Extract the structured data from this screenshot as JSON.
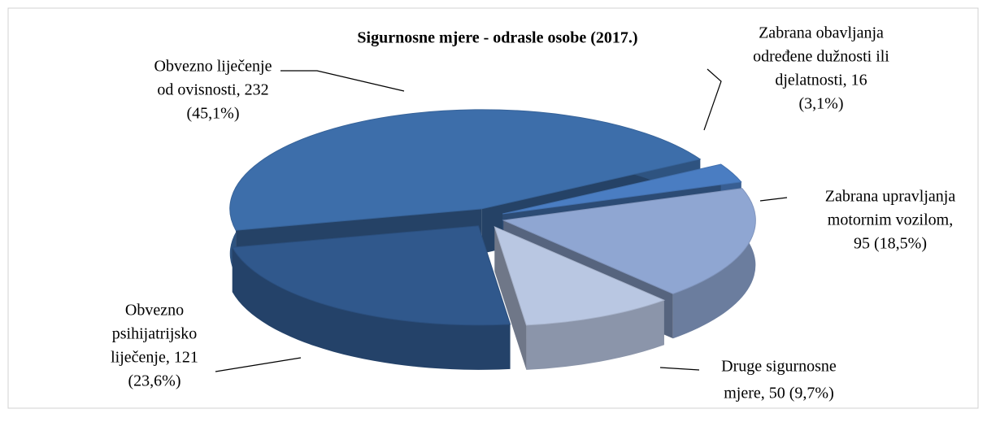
{
  "chart_data": {
    "type": "pie3d",
    "title": "Sigurnosne mjere - odrasle osobe (2017.)",
    "values": [
      16,
      95,
      50,
      121,
      232
    ],
    "colors": [
      "#4a7dc2",
      "#8fa6d2",
      "#b9c7e2",
      "#30588c",
      "#3d6eaa"
    ],
    "labels": [
      [
        "Zabrana obavljanja",
        "određene dužnosti ili",
        "djelatnosti, 16",
        "(3,1%)"
      ],
      [
        "Zabrana upravljanja",
        "motornim vozilom,",
        "95 (18,5%)"
      ],
      [
        "Druge sigurnosne",
        "mjere, 50 (9,7%)"
      ],
      [
        "Obvezno",
        "psihijatrijsko",
        "liječenje, 121",
        "(23,6%)"
      ],
      [
        "Obvezno liječenje",
        "od ovisnosti, 232",
        "(45,1%)"
      ]
    ]
  }
}
